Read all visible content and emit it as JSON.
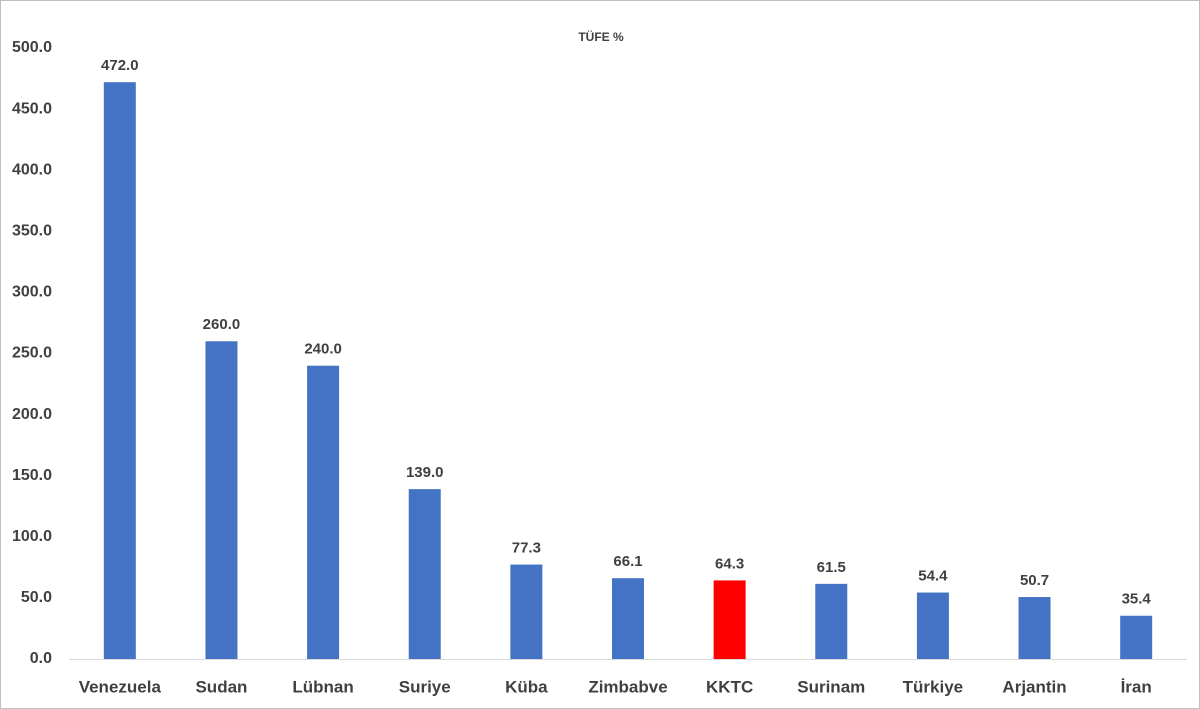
{
  "chart_data": {
    "type": "bar",
    "title": "TÜFE %",
    "categories": [
      "Venezuela",
      "Sudan",
      "Lübnan",
      "Suriye",
      "Küba",
      "Zimbabve",
      "KKTC",
      "Surinam",
      "Türkiye",
      "Arjantin",
      "İran"
    ],
    "values": [
      472.0,
      260.0,
      240.0,
      139.0,
      77.3,
      66.1,
      64.3,
      61.5,
      54.4,
      50.7,
      35.4
    ],
    "value_labels": [
      "472.0",
      "260.0",
      "240.0",
      "139.0",
      "77.3",
      "66.1",
      "64.3",
      "61.5",
      "54.4",
      "50.7",
      "35.4"
    ],
    "colors": [
      "#4472c4",
      "#4472c4",
      "#4472c4",
      "#4472c4",
      "#4472c4",
      "#4472c4",
      "#ff0000",
      "#4472c4",
      "#4472c4",
      "#4472c4",
      "#4472c4"
    ],
    "ylim": [
      0,
      500
    ],
    "yticks": [
      {
        "value": 0,
        "label": "0.0"
      },
      {
        "value": 50,
        "label": "50.0"
      },
      {
        "value": 100,
        "label": "100.0"
      },
      {
        "value": 150,
        "label": "150.0"
      },
      {
        "value": 200,
        "label": "200.0"
      },
      {
        "value": 250,
        "label": "250.0"
      },
      {
        "value": 300,
        "label": "300.0"
      },
      {
        "value": 350,
        "label": "350.0"
      },
      {
        "value": 400,
        "label": "400.0"
      },
      {
        "value": 450,
        "label": "450.0"
      },
      {
        "value": 500,
        "label": "500.0"
      }
    ],
    "grid": false
  }
}
